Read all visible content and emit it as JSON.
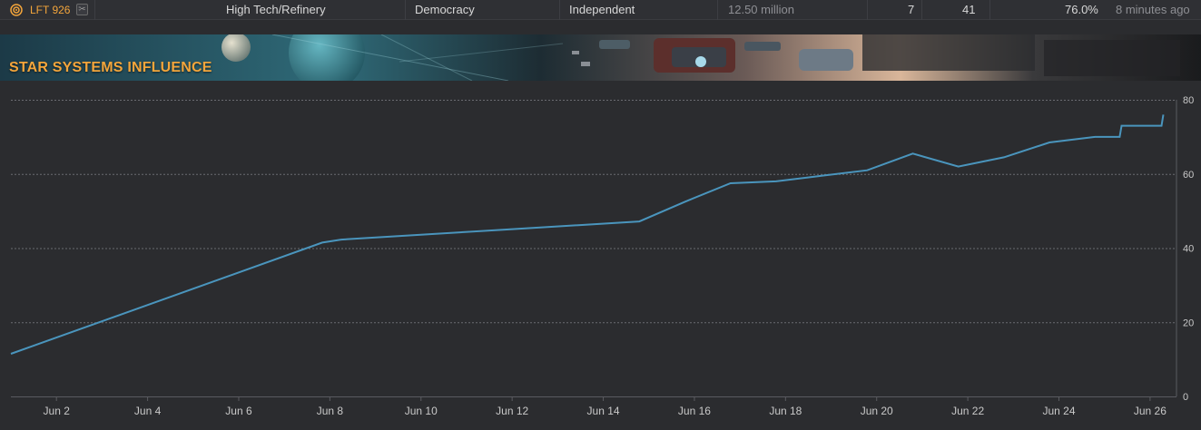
{
  "system_row": {
    "name": "LFT 926",
    "economy": "High Tech/Refinery",
    "government": "Democracy",
    "allegiance": "Independent",
    "population": "12.50 million",
    "col_a": "7",
    "col_b": "41",
    "influence": "76.0%",
    "updated": "8 minutes ago",
    "icon": "target-orbit-icon",
    "tool_icon": "scissors-icon"
  },
  "banner": {
    "title": "STAR SYSTEMS INFLUENCE"
  },
  "colors": {
    "accent": "#f3a53b",
    "series": "#4a95bd",
    "background": "#2b2c2f"
  },
  "chart_data": {
    "type": "line",
    "title": "",
    "xlabel": "",
    "ylabel": "",
    "ylim": [
      0,
      80
    ],
    "yticks": [
      0,
      20,
      40,
      60,
      80
    ],
    "xlim": [
      "2023-06-01",
      "2023-06-26"
    ],
    "xticks": [
      "Jun 2",
      "Jun 4",
      "Jun 6",
      "Jun 8",
      "Jun 10",
      "Jun 12",
      "Jun 14",
      "Jun 16",
      "Jun 18",
      "Jun 20",
      "Jun 22",
      "Jun 24",
      "Jun 26"
    ],
    "y_axis_position": "right",
    "grid": "horizontal-dashed",
    "series": [
      {
        "points": [
          [
            "2023-06-01 00:00",
            11.5
          ],
          [
            "2023-06-07 20:00",
            41.5
          ],
          [
            "2023-06-08 06:00",
            42.3
          ],
          [
            "2023-06-14 19:00",
            47.2
          ],
          [
            "2023-06-15 19:00",
            52.5
          ],
          [
            "2023-06-16 19:00",
            57.5
          ],
          [
            "2023-06-17 19:00",
            58.0
          ],
          [
            "2023-06-18 19:00",
            59.5
          ],
          [
            "2023-06-19 19:00",
            61.0
          ],
          [
            "2023-06-20 19:00",
            65.5
          ],
          [
            "2023-06-21 19:00",
            62.0
          ],
          [
            "2023-06-22 19:00",
            64.5
          ],
          [
            "2023-06-23 19:00",
            68.5
          ],
          [
            "2023-06-24 19:00",
            70.0
          ],
          [
            "2023-06-25 08:00",
            70.0
          ],
          [
            "2023-06-25 09:00",
            73.0
          ],
          [
            "2023-06-26 06:00",
            73.0
          ],
          [
            "2023-06-26 07:00",
            76.0
          ]
        ]
      }
    ]
  }
}
